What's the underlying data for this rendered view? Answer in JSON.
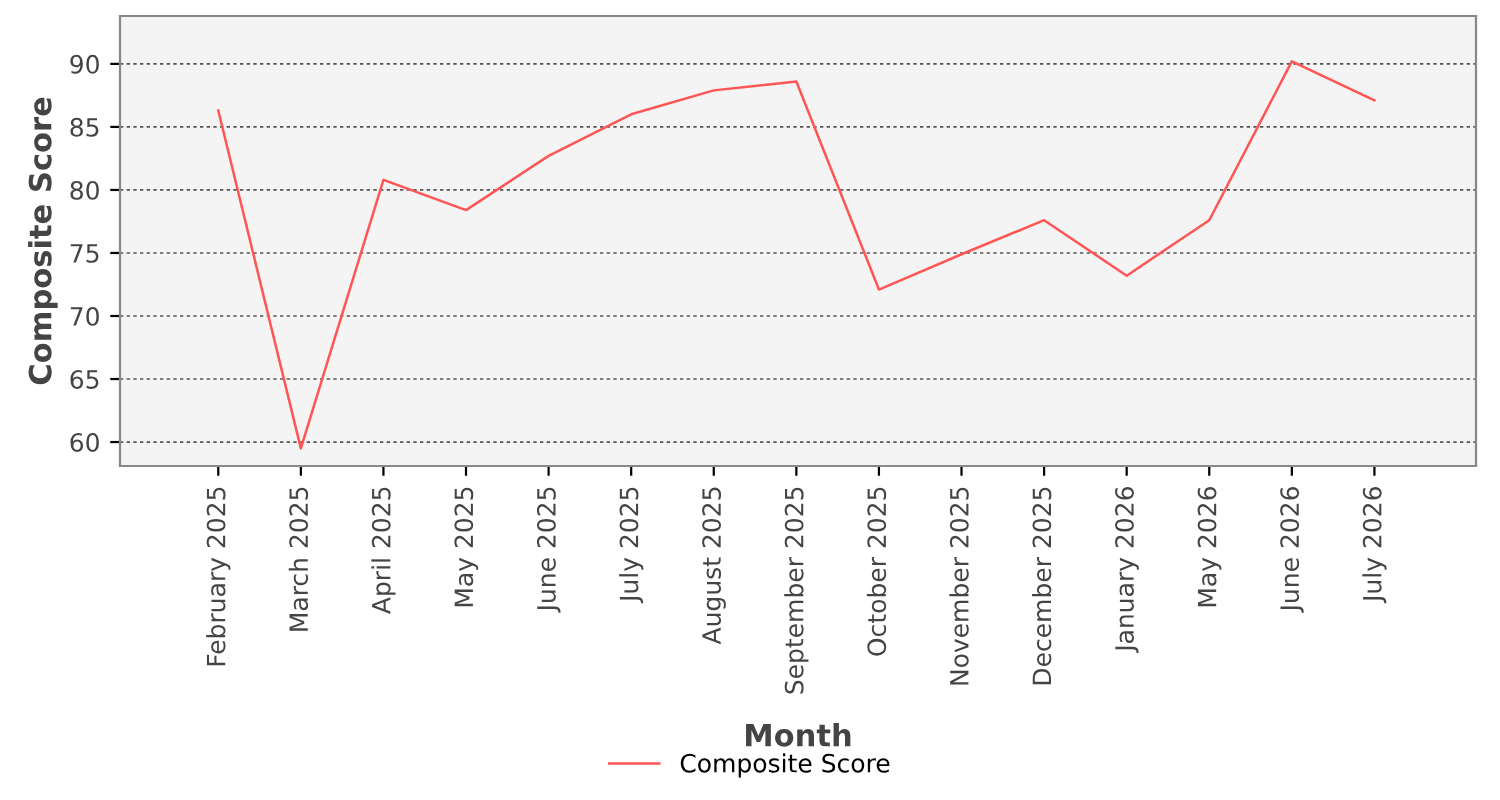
{
  "chart_data": {
    "type": "line",
    "xlabel": "Month",
    "ylabel": "Composite Score",
    "categories": [
      "February 2025",
      "March 2025",
      "April 2025",
      "May 2025",
      "June 2025",
      "July 2025",
      "August 2025",
      "September 2025",
      "October 2025",
      "November 2025",
      "December 2025",
      "January 2026",
      "May 2026",
      "June 2026",
      "July 2026"
    ],
    "series": [
      {
        "name": "Composite Score",
        "color": "#ff5555",
        "values": [
          86.3,
          59.5,
          80.8,
          78.4,
          82.7,
          86.0,
          87.9,
          88.6,
          72.1,
          74.9,
          77.6,
          73.2,
          77.6,
          90.2,
          87.1
        ]
      }
    ],
    "ylim": [
      58.1,
      93.8
    ],
    "yticks": [
      60,
      65,
      70,
      75,
      80,
      85,
      90
    ],
    "grid": "y",
    "legend": "bottom",
    "marker": "none",
    "line_style": "solid"
  }
}
